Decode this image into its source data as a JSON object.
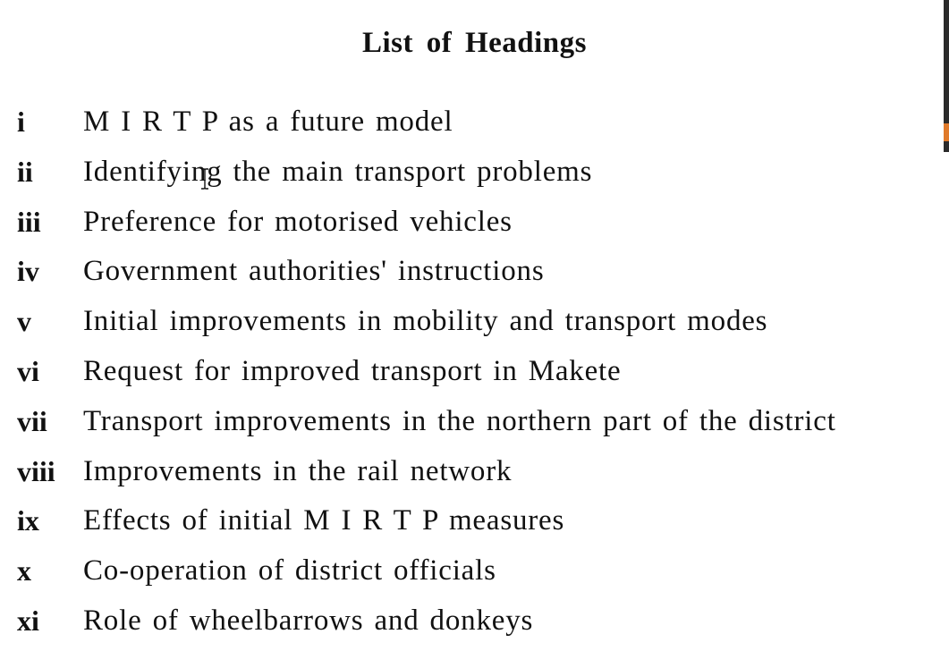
{
  "document": {
    "title": "List of Headings",
    "headings": [
      {
        "numeral": "i",
        "text": "M I R T P as a future model"
      },
      {
        "numeral": "ii",
        "text": "Identifying the main transport problems"
      },
      {
        "numeral": "iii",
        "text": "Preference for motorised vehicles"
      },
      {
        "numeral": "iv",
        "text": "Government authorities' instructions"
      },
      {
        "numeral": "v",
        "text": "Initial improvements in mobility and transport modes"
      },
      {
        "numeral": "vi",
        "text": "Request for improved transport in Makete"
      },
      {
        "numeral": "vii",
        "text": "Transport improvements in the northern part of the district"
      },
      {
        "numeral": "viii",
        "text": "Improvements in the rail network"
      },
      {
        "numeral": "ix",
        "text": "Effects of initial M I R T P measures"
      },
      {
        "numeral": "x",
        "text": "Co-operation of district officials"
      },
      {
        "numeral": "xi",
        "text": "Role of wheelbarrows and donkeys"
      }
    ]
  },
  "icons": {
    "cursor": "text-cursor-icon"
  },
  "colors": {
    "text": "#111111",
    "background": "#ffffff",
    "scrollbar_accent": "#e07a2a"
  }
}
